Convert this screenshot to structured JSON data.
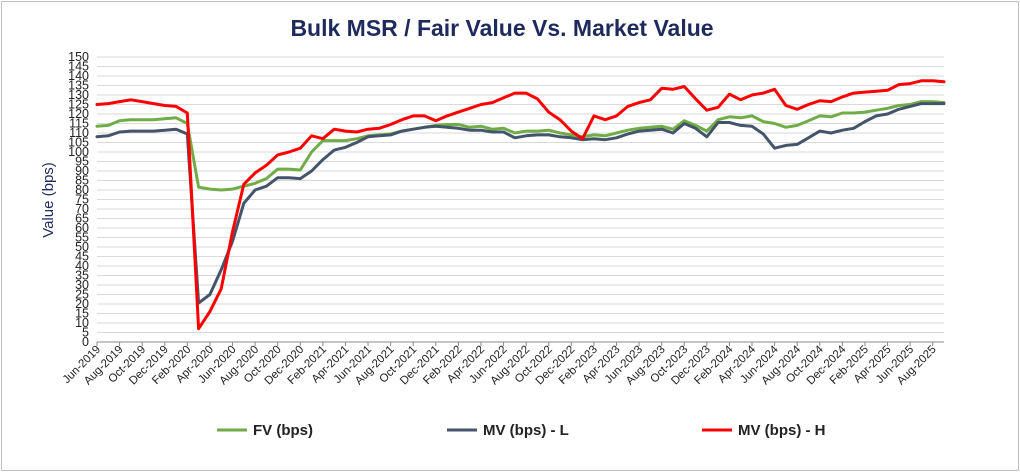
{
  "chart_data": {
    "type": "line",
    "title": "Bulk MSR / Fair Value Vs. Market Value",
    "ylabel": "Value (bps)",
    "xlabel": "",
    "ylim": [
      0,
      150
    ],
    "yticks": [
      0,
      5,
      10,
      15,
      20,
      25,
      30,
      35,
      40,
      45,
      50,
      55,
      60,
      65,
      70,
      75,
      80,
      85,
      90,
      95,
      100,
      105,
      110,
      115,
      120,
      125,
      130,
      135,
      140,
      145,
      150
    ],
    "grid": true,
    "legend_position": "bottom",
    "tick_labels": [
      "Jun-2019",
      "Aug-2019",
      "Oct-2019",
      "Dec-2019",
      "Feb-2020",
      "Apr-2020",
      "Jun-2020",
      "Aug-2020",
      "Oct-2020",
      "Dec-2020",
      "Feb-2021",
      "Apr-2021",
      "Jun-2021",
      "Aug-2021",
      "Oct-2021",
      "Dec-2021",
      "Feb-2022",
      "Apr-2022",
      "Jun-2022",
      "Aug-2022",
      "Oct-2022",
      "Dec-2022",
      "Feb-2023",
      "Apr-2023",
      "Jun-2023",
      "Aug-2023",
      "Oct-2023",
      "Dec-2023",
      "Feb-2024",
      "Apr-2024",
      "Jun-2024",
      "Aug-2024",
      "Oct-2024",
      "Dec-2024",
      "Feb-2025",
      "Apr-2025",
      "Jun-2025",
      "Aug-2025"
    ],
    "x": [
      "Jun-2019",
      "Jul-2019",
      "Aug-2019",
      "Sep-2019",
      "Oct-2019",
      "Nov-2019",
      "Dec-2019",
      "Jan-2020",
      "Feb-2020",
      "Mar-2020",
      "Apr-2020",
      "May-2020",
      "Jun-2020",
      "Jul-2020",
      "Aug-2020",
      "Sep-2020",
      "Oct-2020",
      "Nov-2020",
      "Dec-2020",
      "Jan-2021",
      "Feb-2021",
      "Mar-2021",
      "Apr-2021",
      "May-2021",
      "Jun-2021",
      "Jul-2021",
      "Aug-2021",
      "Sep-2021",
      "Oct-2021",
      "Nov-2021",
      "Dec-2021",
      "Jan-2022",
      "Feb-2022",
      "Mar-2022",
      "Apr-2022",
      "May-2022",
      "Jun-2022",
      "Jul-2022",
      "Aug-2022",
      "Sep-2022",
      "Oct-2022",
      "Nov-2022",
      "Dec-2022",
      "Jan-2023",
      "Feb-2023",
      "Mar-2023",
      "Apr-2023",
      "May-2023",
      "Jun-2023",
      "Jul-2023",
      "Aug-2023",
      "Sep-2023",
      "Oct-2023",
      "Nov-2023",
      "Dec-2023",
      "Jan-2024",
      "Feb-2024",
      "Mar-2024",
      "Apr-2024",
      "May-2024",
      "Jun-2024",
      "Jul-2024",
      "Aug-2024",
      "Sep-2024",
      "Oct-2024",
      "Nov-2024",
      "Dec-2024",
      "Jan-2025",
      "Feb-2025",
      "Mar-2025",
      "Apr-2025",
      "May-2025",
      "Jun-2025",
      "Jul-2025",
      "Aug-2025",
      "Sep-2025"
    ],
    "series": [
      {
        "name": "FV (bps)",
        "color": "#70ad47",
        "values": [
          113.5,
          114,
          116.5,
          117,
          117,
          117,
          117.5,
          118,
          115,
          81.5,
          80.5,
          80,
          80.5,
          82,
          83.5,
          86,
          91,
          91,
          90.5,
          100,
          106,
          106,
          106,
          107,
          108.5,
          109,
          109.5,
          111,
          112,
          113,
          114,
          114.5,
          114.5,
          113,
          113.5,
          112,
          112.5,
          110,
          111,
          111,
          111.5,
          110,
          109,
          108,
          109,
          108.5,
          110,
          111.5,
          112.5,
          113,
          113.5,
          112,
          116.5,
          114,
          111,
          117,
          118.5,
          118,
          119,
          116,
          115,
          113,
          114,
          116.5,
          119,
          118.5,
          120.5,
          120.5,
          121,
          122,
          123,
          124.5,
          125,
          126.5,
          126.5,
          126
        ]
      },
      {
        "name": "MV (bps) - L",
        "color": "#44546a",
        "values": [
          108,
          108.5,
          110.5,
          111,
          111,
          111,
          111.5,
          112,
          109.5,
          20.5,
          25,
          38,
          53,
          73,
          80,
          82,
          86.5,
          86.5,
          86,
          90,
          96,
          101,
          102.5,
          105,
          108,
          108.5,
          109,
          111,
          112,
          113,
          113.5,
          113,
          112.5,
          111.5,
          111.5,
          110.5,
          110.5,
          107.5,
          108.5,
          109,
          109,
          108,
          107.5,
          106.5,
          107,
          106.5,
          107.5,
          109.5,
          111,
          111.5,
          112,
          110,
          115,
          112.5,
          108,
          115.5,
          115.5,
          114,
          113.5,
          109.5,
          102,
          103.5,
          104,
          107.5,
          111,
          110,
          111.5,
          112.5,
          116,
          119,
          120,
          122.5,
          124,
          125.5,
          125.5,
          125.5
        ]
      },
      {
        "name": "MV (bps) - H",
        "color": "#ff0000",
        "values": [
          125,
          125.5,
          126.5,
          127.5,
          126.5,
          125.5,
          124.5,
          124,
          120.5,
          7,
          16,
          28,
          58,
          83,
          89,
          93,
          98.5,
          100,
          102,
          108.5,
          107,
          112,
          111,
          110.5,
          112,
          112.5,
          114.5,
          117,
          119,
          119,
          116.5,
          119,
          121,
          123,
          125,
          126,
          128.5,
          131,
          131,
          128,
          121,
          117,
          111,
          107,
          119,
          117,
          119,
          124,
          126,
          127.5,
          133.5,
          133,
          134.5,
          128,
          122,
          123.5,
          130.5,
          127.5,
          130,
          131,
          133,
          124.5,
          122.5,
          125,
          127,
          126.5,
          129,
          131,
          131.5,
          132,
          132.5,
          135.5,
          136,
          137.5,
          137.5,
          137
        ]
      }
    ]
  }
}
